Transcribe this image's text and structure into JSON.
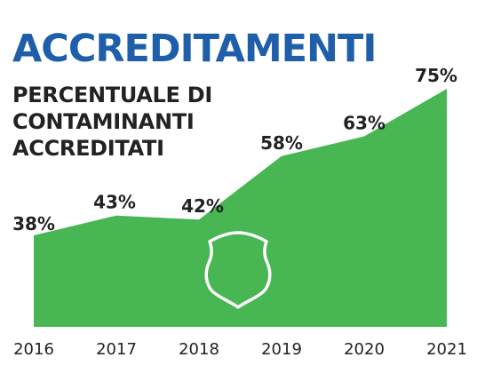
{
  "header": {
    "title": "ACCREDITAMENTI",
    "subtitle": "PERCENTUALE DI CONTAMINANTI ACCREDITATI"
  },
  "colors": {
    "title": "#1f5ea8",
    "area_fill": "#47b653",
    "text": "#222222",
    "shield_stroke": "#ffffff"
  },
  "icons": {
    "emblem": "shield-icon"
  },
  "chart_data": {
    "type": "area",
    "title": "ACCREDITAMENTI",
    "subtitle": "PERCENTUALE DI CONTAMINANTI ACCREDITATI",
    "xlabel": "",
    "ylabel": "",
    "categories": [
      "2016",
      "2017",
      "2018",
      "2019",
      "2020",
      "2021"
    ],
    "values": [
      38,
      43,
      42,
      58,
      63,
      75
    ],
    "labels": [
      "38%",
      "43%",
      "42%",
      "58%",
      "63%",
      "75%"
    ],
    "grid": false,
    "legend": "none"
  }
}
